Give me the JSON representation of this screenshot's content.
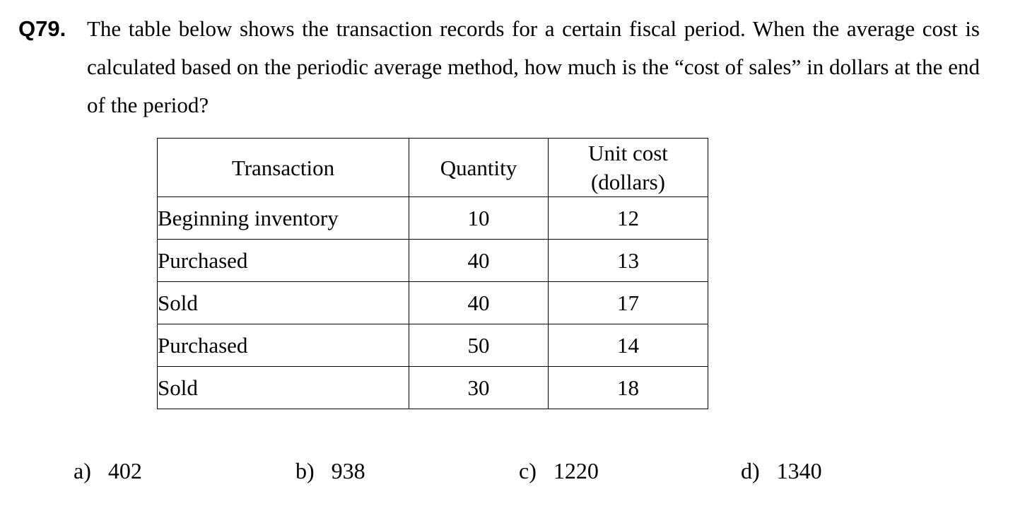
{
  "question": {
    "number": "Q79.",
    "text": "The table below shows the transaction records for a certain fiscal period.  When the average cost is calculated based on the periodic average method, how much is the “cost of sales” in dollars at the end of the period?"
  },
  "table": {
    "headers": {
      "transaction": "Transaction",
      "quantity": "Quantity",
      "unit_cost_line1": "Unit cost",
      "unit_cost_line2": "(dollars)"
    },
    "rows": [
      {
        "transaction": "Beginning inventory",
        "quantity": "10",
        "unit_cost": "12"
      },
      {
        "transaction": "Purchased",
        "quantity": "40",
        "unit_cost": "13"
      },
      {
        "transaction": "Sold",
        "quantity": "40",
        "unit_cost": "17"
      },
      {
        "transaction": "Purchased",
        "quantity": "50",
        "unit_cost": "14"
      },
      {
        "transaction": "Sold",
        "quantity": "30",
        "unit_cost": "18"
      }
    ]
  },
  "choices": [
    {
      "letter": "a)",
      "value": "402"
    },
    {
      "letter": "b)",
      "value": "938"
    },
    {
      "letter": "c)",
      "value": "1220"
    },
    {
      "letter": "d)",
      "value": "1340"
    }
  ]
}
